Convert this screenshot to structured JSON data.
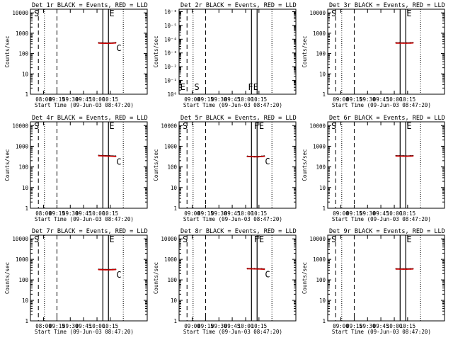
{
  "chart_data": [
    {
      "type": "line",
      "title": "Det 1r BLACK = Events, RED = LLD",
      "xlabel": "Start Time (09-Jun-03 08:47:20)",
      "ylabel": "Counts/sec",
      "x_ticks": [
        "08:00",
        "09:15",
        "09:30",
        "09:45",
        "10:00",
        "10:15"
      ],
      "y_scale": "log",
      "y_ticks": [
        "1",
        "10",
        "100",
        "1000",
        "10000"
      ],
      "ylim": [
        1,
        15000
      ],
      "markers": [
        "S",
        "E",
        "C"
      ],
      "series": [
        {
          "color": "#000000",
          "x": [
            "10:02",
            "10:06",
            "10:10",
            "10:14",
            "10:18",
            "10:21"
          ],
          "values": [
            340,
            335,
            330,
            330,
            335,
            345
          ]
        },
        {
          "color": "#cc0000",
          "x": [
            "10:02",
            "10:06",
            "10:10",
            "10:14",
            "10:18",
            "10:21"
          ],
          "values": [
            325,
            320,
            318,
            318,
            322,
            330
          ]
        }
      ]
    },
    {
      "type": "line",
      "title": "Det 2r BLACK = Events, RED = LLD",
      "xlabel": "Start Time (09-Jun-03 08:47:20)",
      "ylabel": "Counts/sec",
      "x_ticks": [
        "09:00",
        "09:15",
        "09:30",
        "09:45",
        "10:00",
        "10:15"
      ],
      "y_scale": "log",
      "y_ticks": [
        "10⁰",
        "10⁻¹",
        "10⁻²",
        "10⁻³",
        "10⁻⁴",
        "10⁻⁵",
        "10⁻⁶"
      ],
      "markers": [
        "S",
        "E",
        "FE"
      ],
      "series": []
    },
    {
      "type": "line",
      "title": "Det 3r BLACK = Events, RED = LLD",
      "xlabel": "Start Time (09-Jun-03 08:47:20)",
      "ylabel": "Counts/sec",
      "x_ticks": [
        "09:00",
        "09:15",
        "09:30",
        "09:45",
        "10:00",
        "10:15"
      ],
      "y_scale": "log",
      "y_ticks": [
        "1",
        "10",
        "100",
        "1000",
        "10000"
      ],
      "ylim": [
        1,
        15000
      ],
      "markers": [
        "S",
        "E"
      ],
      "series": [
        {
          "color": "#000000",
          "x": [
            "10:02",
            "10:06",
            "10:10",
            "10:14",
            "10:18",
            "10:21"
          ],
          "values": [
            340,
            340,
            335,
            335,
            340,
            345
          ]
        },
        {
          "color": "#cc0000",
          "x": [
            "10:02",
            "10:06",
            "10:10",
            "10:14",
            "10:18",
            "10:21"
          ],
          "values": [
            325,
            325,
            322,
            322,
            326,
            330
          ]
        }
      ]
    },
    {
      "type": "line",
      "title": "Det 4r BLACK = Events, RED = LLD",
      "xlabel": "Start Time (09-Jun-03 08:47:20)",
      "ylabel": "Counts/sec",
      "x_ticks": [
        "08:00",
        "09:15",
        "09:30",
        "09:45",
        "10:00",
        "10:15"
      ],
      "y_scale": "log",
      "y_ticks": [
        "1",
        "10",
        "100",
        "1000",
        "10000"
      ],
      "ylim": [
        1,
        15000
      ],
      "markers": [
        "S",
        "E",
        "C"
      ],
      "series": [
        {
          "color": "#000000",
          "x": [
            "10:02",
            "10:06",
            "10:10",
            "10:14",
            "10:18",
            "10:21"
          ],
          "values": [
            360,
            355,
            350,
            345,
            340,
            335
          ]
        },
        {
          "color": "#cc0000",
          "x": [
            "10:02",
            "10:06",
            "10:10",
            "10:14",
            "10:18",
            "10:21"
          ],
          "values": [
            345,
            340,
            335,
            330,
            325,
            320
          ]
        }
      ]
    },
    {
      "type": "line",
      "title": "Det 5r BLACK = Events, RED = LLD",
      "xlabel": "Start Time (09-Jun-03 08:47:20)",
      "ylabel": "Counts/sec",
      "x_ticks": [
        "09:00",
        "09:15",
        "09:30",
        "09:45",
        "10:00",
        "10:15"
      ],
      "y_scale": "log",
      "y_ticks": [
        "1",
        "10",
        "100",
        "1000",
        "10000"
      ],
      "ylim": [
        1,
        15000
      ],
      "markers": [
        "S",
        "FE",
        "C"
      ],
      "series": [
        {
          "color": "#000000",
          "x": [
            "10:02",
            "10:06",
            "10:10",
            "10:14",
            "10:18",
            "10:21"
          ],
          "values": [
            330,
            325,
            320,
            320,
            330,
            340
          ]
        },
        {
          "color": "#cc0000",
          "x": [
            "10:02",
            "10:06",
            "10:10",
            "10:14",
            "10:18",
            "10:21"
          ],
          "values": [
            315,
            312,
            308,
            308,
            316,
            325
          ]
        }
      ]
    },
    {
      "type": "line",
      "title": "Det 6r BLACK = Events, RED = LLD",
      "xlabel": "Start Time (09-Jun-03 08:47:20)",
      "ylabel": "Counts/sec",
      "x_ticks": [
        "09:00",
        "09:15",
        "09:30",
        "09:45",
        "10:00",
        "10:15"
      ],
      "y_scale": "log",
      "y_ticks": [
        "1",
        "10",
        "100",
        "1000",
        "10000"
      ],
      "ylim": [
        1,
        15000
      ],
      "markers": [
        "S",
        "E"
      ],
      "series": [
        {
          "color": "#000000",
          "x": [
            "10:02",
            "10:06",
            "10:10",
            "10:14",
            "10:18",
            "10:21"
          ],
          "values": [
            350,
            345,
            345,
            340,
            345,
            350
          ]
        },
        {
          "color": "#cc0000",
          "x": [
            "10:02",
            "10:06",
            "10:10",
            "10:14",
            "10:18",
            "10:21"
          ],
          "values": [
            335,
            332,
            330,
            328,
            332,
            336
          ]
        }
      ]
    },
    {
      "type": "line",
      "title": "Det 7r BLACK = Events, RED = LLD",
      "xlabel": "Start Time (09-Jun-03 08:47:20)",
      "ylabel": "Counts/sec",
      "x_ticks": [
        "08:00",
        "09:15",
        "09:30",
        "09:45",
        "10:00",
        "10:15"
      ],
      "y_scale": "log",
      "y_ticks": [
        "1",
        "10",
        "100",
        "1000",
        "10000"
      ],
      "ylim": [
        1,
        15000
      ],
      "markers": [
        "S",
        "E",
        "C"
      ],
      "series": [
        {
          "color": "#000000",
          "x": [
            "10:02",
            "10:06",
            "10:10",
            "10:14",
            "10:18",
            "10:21"
          ],
          "values": [
            330,
            325,
            320,
            320,
            325,
            330
          ]
        },
        {
          "color": "#cc0000",
          "x": [
            "10:02",
            "10:06",
            "10:10",
            "10:14",
            "10:18",
            "10:21"
          ],
          "values": [
            315,
            312,
            308,
            308,
            312,
            318
          ]
        }
      ]
    },
    {
      "type": "line",
      "title": "Det 8r BLACK = Events, RED = LLD",
      "xlabel": "Start Time (09-Jun-03 08:47:20)",
      "ylabel": "Counts/sec",
      "x_ticks": [
        "09:00",
        "09:15",
        "09:30",
        "09:45",
        "10:00",
        "10:15"
      ],
      "y_scale": "log",
      "y_ticks": [
        "1",
        "10",
        "100",
        "1000",
        "10000"
      ],
      "ylim": [
        1,
        15000
      ],
      "markers": [
        "S",
        "FE",
        "C"
      ],
      "series": [
        {
          "color": "#000000",
          "x": [
            "10:02",
            "10:06",
            "10:10",
            "10:14",
            "10:18",
            "10:21"
          ],
          "values": [
            360,
            358,
            355,
            352,
            350,
            340
          ]
        },
        {
          "color": "#cc0000",
          "x": [
            "10:02",
            "10:06",
            "10:10",
            "10:14",
            "10:18",
            "10:21"
          ],
          "values": [
            345,
            342,
            340,
            338,
            335,
            325
          ]
        }
      ]
    },
    {
      "type": "line",
      "title": "Det 9r BLACK = Events, RED = LLD",
      "xlabel": "Start Time (09-Jun-03 08:47:20)",
      "ylabel": "Counts/sec",
      "x_ticks": [
        "09:00",
        "09:15",
        "09:30",
        "09:45",
        "10:00",
        "10:15"
      ],
      "y_scale": "log",
      "y_ticks": [
        "1",
        "10",
        "100",
        "1000",
        "10000"
      ],
      "ylim": [
        1,
        15000
      ],
      "markers": [
        "S",
        "E"
      ],
      "series": [
        {
          "color": "#000000",
          "x": [
            "10:02",
            "10:06",
            "10:10",
            "10:14",
            "10:18",
            "10:21"
          ],
          "values": [
            350,
            345,
            345,
            345,
            348,
            352
          ]
        },
        {
          "color": "#cc0000",
          "x": [
            "10:02",
            "10:06",
            "10:10",
            "10:14",
            "10:18",
            "10:21"
          ],
          "values": [
            335,
            332,
            330,
            330,
            333,
            338
          ]
        }
      ]
    }
  ]
}
